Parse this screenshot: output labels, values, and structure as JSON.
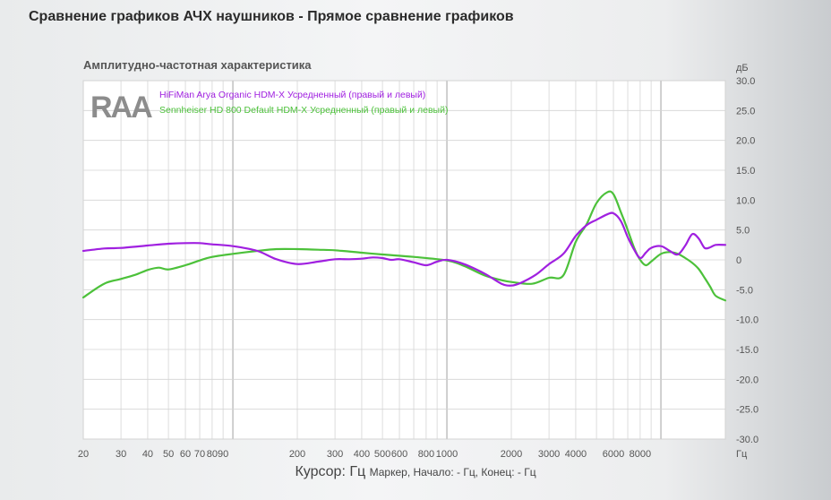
{
  "header": {
    "title": "Сравнение графиков АЧХ наушников - Прямое сравнение графиков"
  },
  "logo_text": "RAA",
  "cursor": {
    "label": "Курсор: Гц",
    "detail": "Маркер, Начало: - Гц, Конец: - Гц"
  },
  "colors": {
    "series1": "#a020e0",
    "series2": "#4cc13a",
    "grid": "#d4d4d4",
    "grid_major": "#b0b0b0"
  },
  "chart_data": {
    "type": "line",
    "title": "Амплитудно-частотная характеристика",
    "xlabel": "Гц",
    "ylabel": "дБ",
    "xscale": "log",
    "xlim": [
      20,
      20000
    ],
    "ylim": [
      -30,
      30
    ],
    "grid": true,
    "legend_position": "top-left",
    "x_tick_labels": [
      "20",
      "30",
      "40",
      "50",
      "60",
      "70",
      "80",
      "90",
      "200",
      "300",
      "400",
      "500",
      "600",
      "800",
      "1000",
      "2000",
      "3000",
      "4000",
      "6000",
      "8000"
    ],
    "y_tick_labels": [
      "30.0",
      "25.0",
      "20.0",
      "15.0",
      "10.0",
      "5.0",
      "0",
      "-5.0",
      "-10.0",
      "-15.0",
      "-20.0",
      "-25.0",
      "-30.0"
    ],
    "series": [
      {
        "name": "HiFiMan Arya Organic HDM-X Усредненный (правый и левый)",
        "x": [
          20,
          25,
          30,
          40,
          50,
          60,
          70,
          80,
          100,
          130,
          160,
          200,
          250,
          300,
          350,
          400,
          450,
          500,
          550,
          600,
          700,
          800,
          900,
          1000,
          1200,
          1500,
          1800,
          2000,
          2200,
          2600,
          3000,
          3500,
          4000,
          4500,
          5000,
          5600,
          6000,
          6500,
          7000,
          7500,
          8000,
          8500,
          9000,
          10000,
          11000,
          12000,
          13000,
          14000,
          15000,
          16000,
          17000,
          18000,
          20000
        ],
        "y": [
          1.5,
          1.9,
          2.0,
          2.4,
          2.7,
          2.8,
          2.8,
          2.6,
          2.3,
          1.5,
          0.1,
          -0.7,
          -0.3,
          0.1,
          0.1,
          0.2,
          0.4,
          0.3,
          0.0,
          0.1,
          -0.4,
          -0.9,
          -0.3,
          0.0,
          -0.7,
          -2.3,
          -4.0,
          -4.3,
          -3.9,
          -2.5,
          -0.7,
          1.0,
          4.0,
          5.8,
          6.7,
          7.6,
          7.8,
          6.5,
          3.8,
          1.7,
          0.3,
          1.2,
          2.0,
          2.3,
          1.5,
          0.9,
          2.4,
          4.3,
          3.6,
          2.0,
          2.1,
          2.5,
          2.5
        ]
      },
      {
        "name": "Sennheiser HD 800 Default HDM-X Усредненный (правый и левый)",
        "x": [
          20,
          25,
          30,
          35,
          40,
          45,
          50,
          60,
          70,
          80,
          100,
          130,
          160,
          200,
          250,
          300,
          400,
          500,
          700,
          1000,
          1200,
          1500,
          1800,
          2000,
          2500,
          3000,
          3500,
          4000,
          4500,
          5000,
          5600,
          6000,
          6500,
          7000,
          7500,
          8000,
          8500,
          9000,
          10000,
          11000,
          12000,
          13000,
          14000,
          15000,
          16000,
          17000,
          18000,
          20000
        ],
        "y": [
          -6.3,
          -4.0,
          -3.2,
          -2.5,
          -1.7,
          -1.3,
          -1.6,
          -0.9,
          -0.1,
          0.5,
          1.0,
          1.5,
          1.8,
          1.8,
          1.7,
          1.6,
          1.2,
          0.9,
          0.5,
          -0.1,
          -1.0,
          -2.6,
          -3.4,
          -3.7,
          -4.0,
          -3.0,
          -2.6,
          3.0,
          6.0,
          9.5,
          11.3,
          11.0,
          8.0,
          5.0,
          2.0,
          0.0,
          -0.9,
          -0.3,
          1.0,
          1.3,
          1.0,
          0.3,
          -0.5,
          -1.5,
          -3.0,
          -4.5,
          -6.0,
          -6.8
        ]
      }
    ]
  }
}
